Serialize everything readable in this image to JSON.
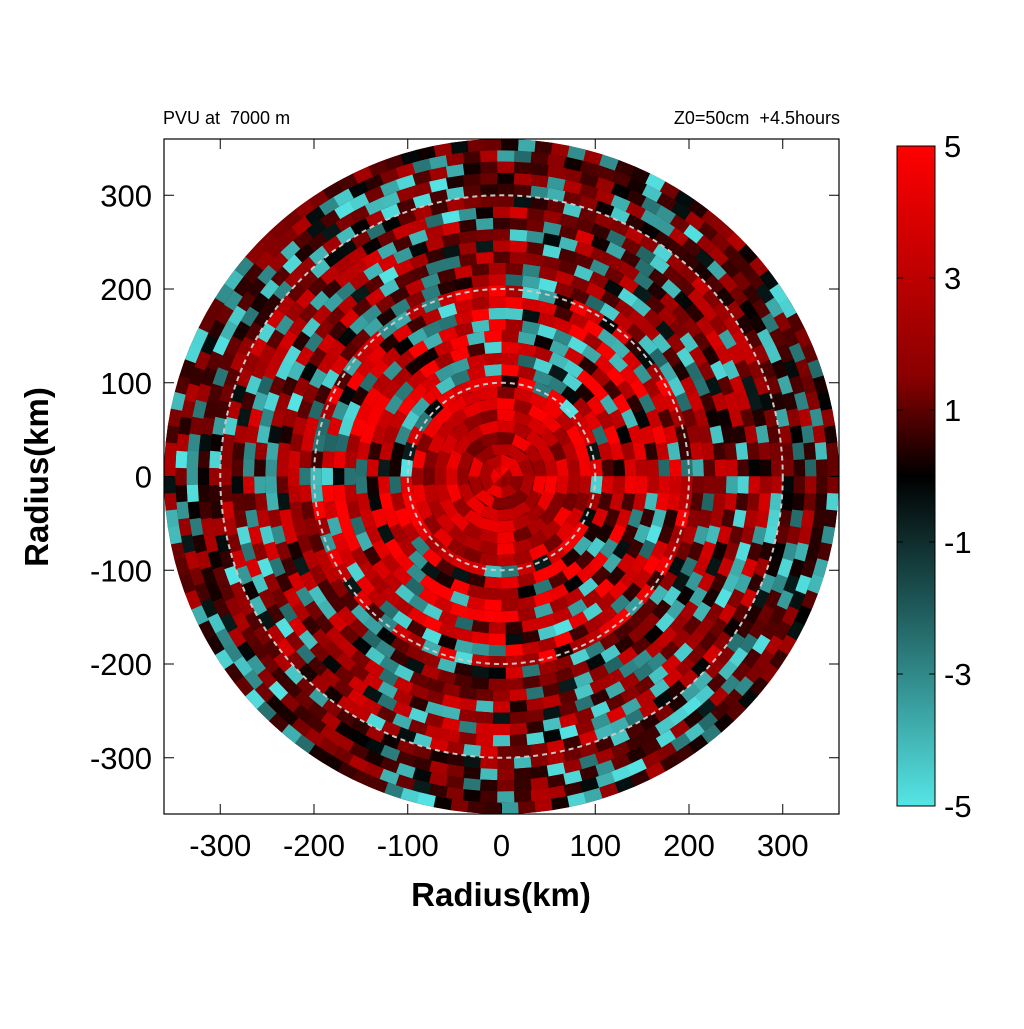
{
  "chart_data": {
    "type": "heatmap",
    "title_left": "PVU at  7000 m",
    "title_right": "Z0=50cm  +4.5hours",
    "xlabel": "Radius(km)",
    "ylabel": "Radius(km)",
    "xlim": [
      -360,
      360
    ],
    "ylim": [
      -360,
      360
    ],
    "xticks": [
      -300,
      -200,
      -100,
      0,
      100,
      200,
      300
    ],
    "yticks": [
      300,
      200,
      100,
      0,
      -100,
      -200,
      -300
    ],
    "xtick_labels": [
      "-300",
      "-200",
      "-100",
      "0",
      "100",
      "200",
      "300"
    ],
    "ytick_labels": [
      "300",
      "200",
      "100",
      "0",
      "-100",
      "-200",
      "-300"
    ],
    "domain_radius": 360,
    "reference_circles_km": [
      100,
      200,
      300
    ],
    "colorbar": {
      "range": [
        -5,
        5
      ],
      "ticks": [
        5,
        3,
        1,
        -1,
        -3,
        -5
      ],
      "tick_labels": [
        "5",
        "3",
        "1",
        "-1",
        "-3",
        "-5"
      ],
      "colors": {
        "high": "#ff0000",
        "mid": "#000000",
        "low": "#55e5e5"
      }
    },
    "features": {
      "description_note": "",
      "rings": [
        {
          "r_inner": 0,
          "r_outer": 100,
          "typical_value": 2.5
        },
        {
          "r_inner": 100,
          "r_outer": 200,
          "typical_value": 3.5
        },
        {
          "r_inner": 200,
          "r_outer": 300,
          "typical_value": 2.0
        },
        {
          "r_inner": 300,
          "r_outer": 360,
          "typical_value": 1.0
        }
      ]
    }
  }
}
